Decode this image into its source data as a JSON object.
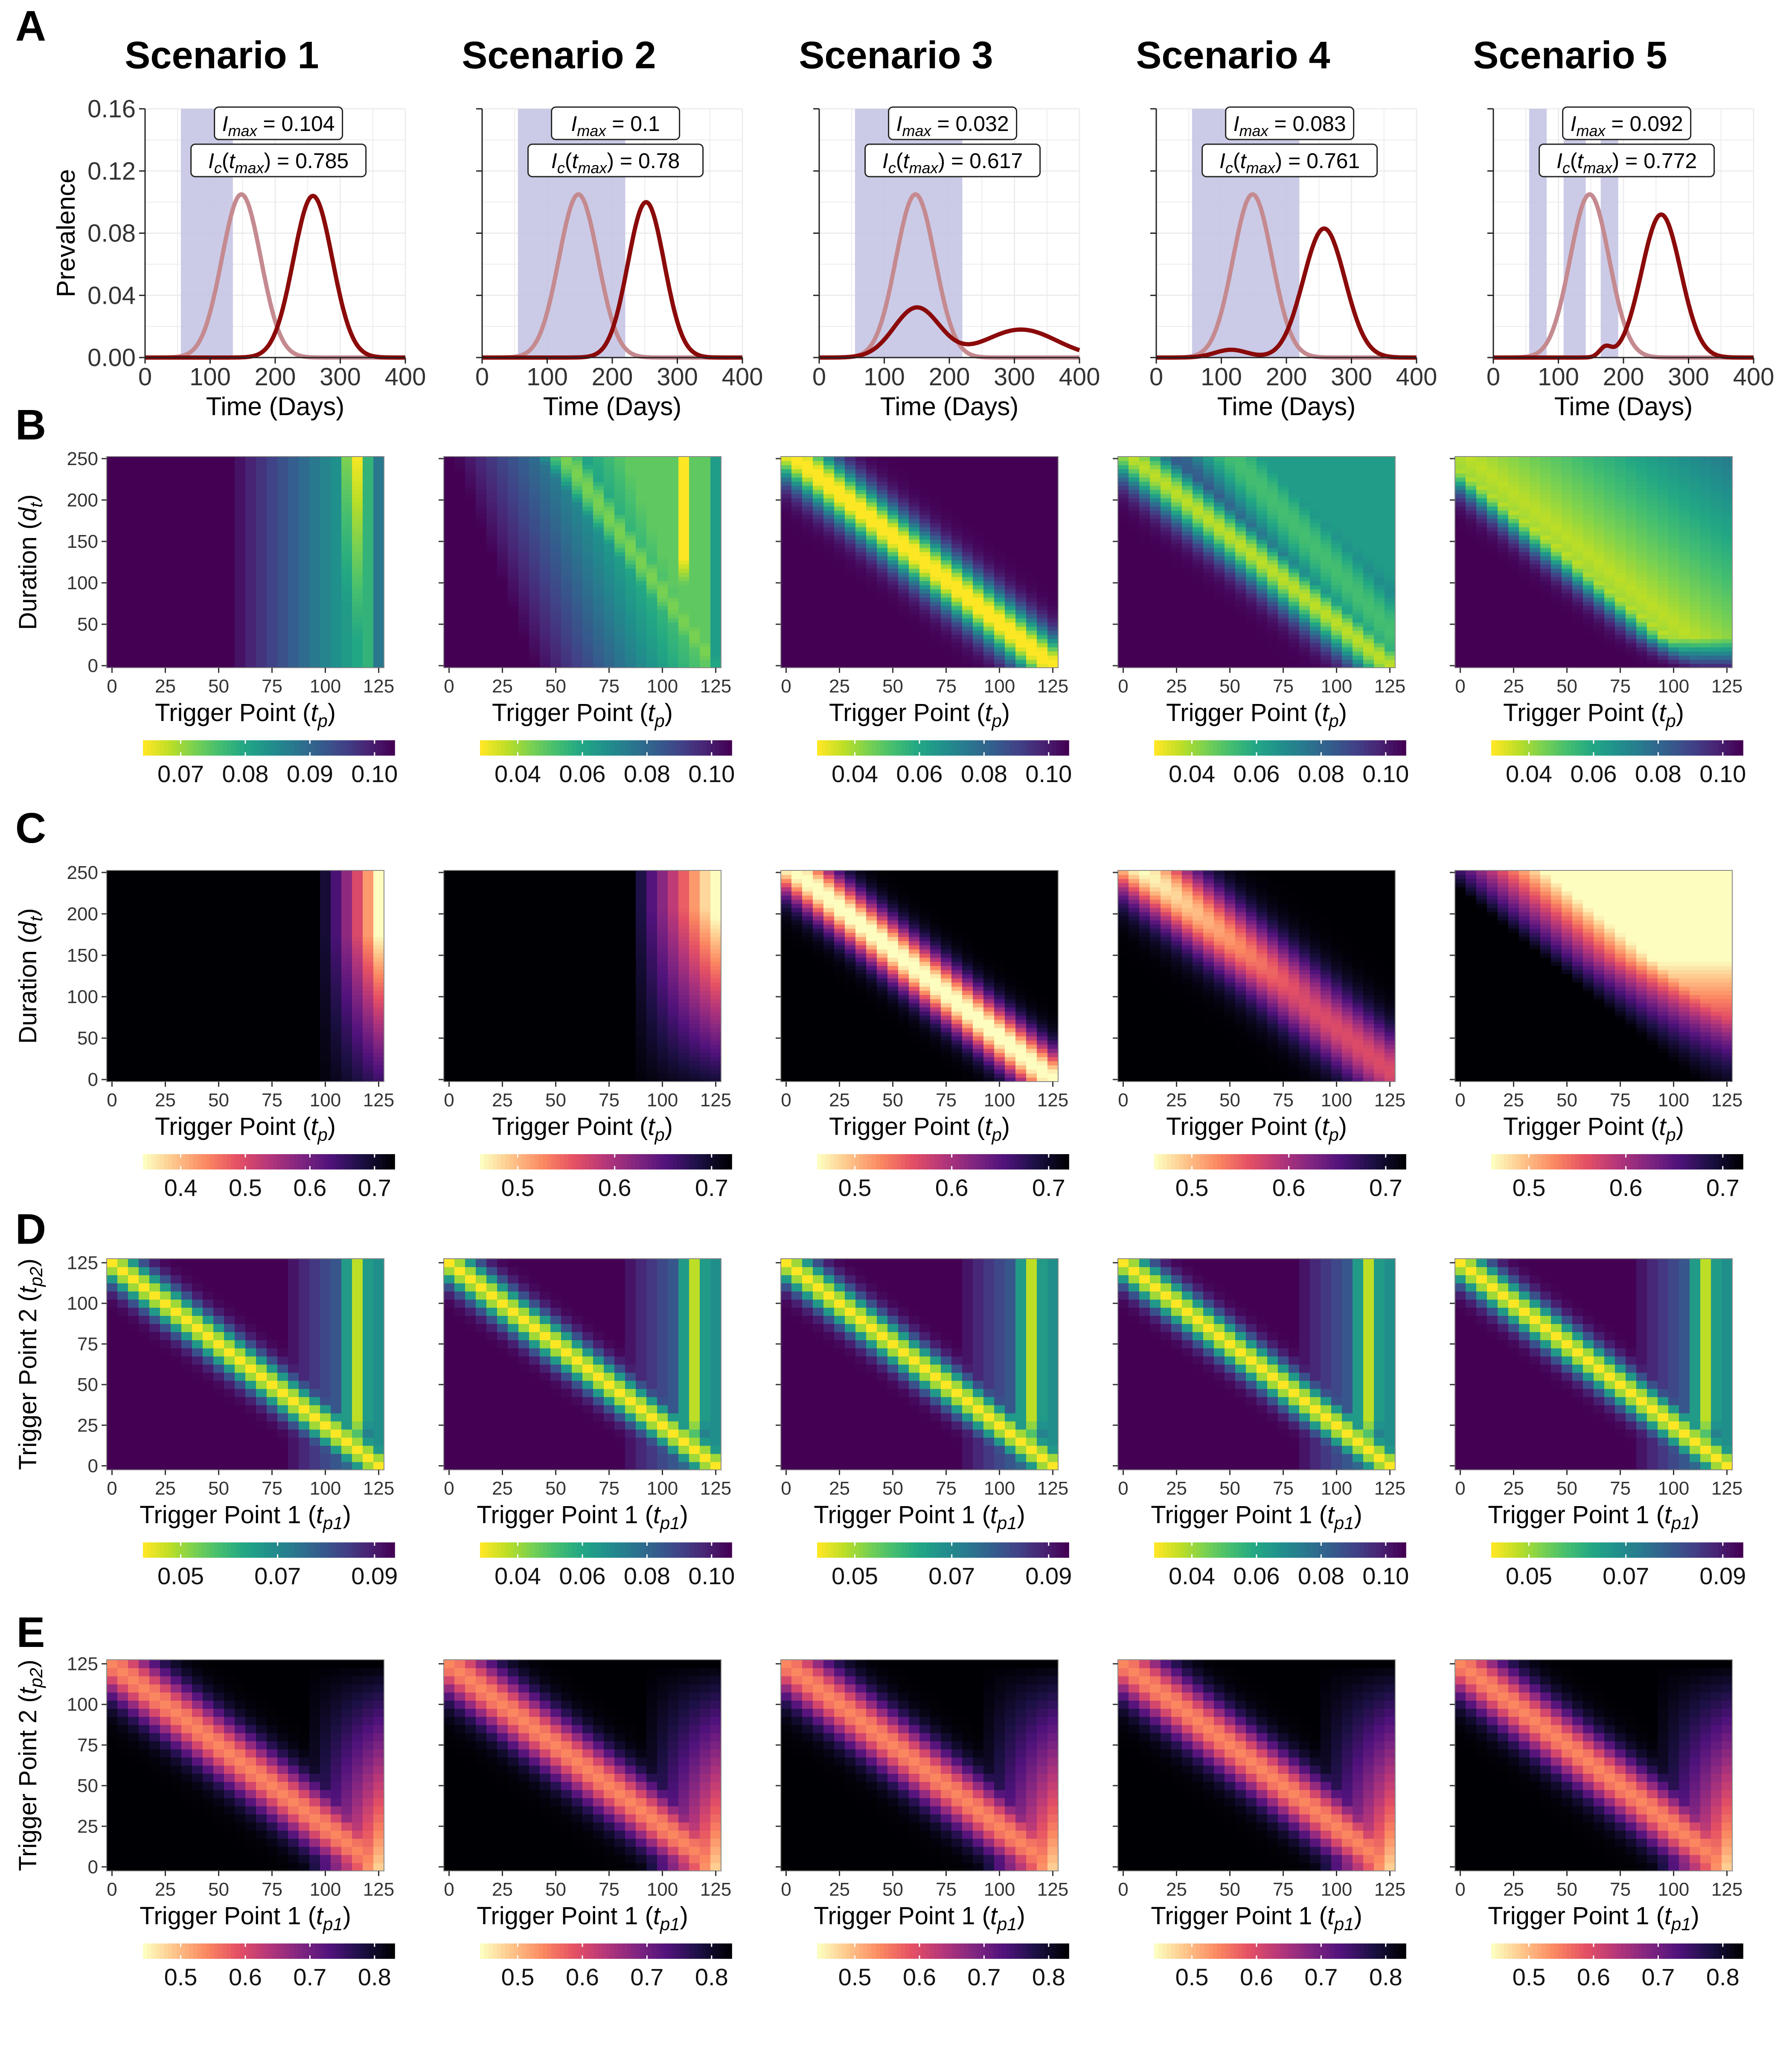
{
  "figure": {
    "panels": [
      {
        "letter": "A"
      },
      {
        "letter": "B"
      },
      {
        "letter": "C"
      },
      {
        "letter": "D"
      },
      {
        "letter": "E"
      }
    ],
    "scenarios": [
      {
        "title": "Scenario 1"
      },
      {
        "title": "Scenario 2"
      },
      {
        "title": "Scenario 3"
      },
      {
        "title": "Scenario 4"
      },
      {
        "title": "Scenario 5"
      }
    ]
  },
  "colors": {
    "baseline_curve": "#c48a90",
    "intervention_curve": "#8b0a0a",
    "intervention_band": "#c5c5e4",
    "grid": "#ececec"
  },
  "chart_data": [
    {
      "panel": "A",
      "type": "line",
      "xlabel": "Time (Days)",
      "ylabel": "Prevalence",
      "xlim": [
        0,
        400
      ],
      "ylim": [
        0,
        0.16
      ],
      "xticks": [
        "0",
        "100",
        "200",
        "300",
        "400"
      ],
      "yticks": [
        "0.00",
        "0.04",
        "0.08",
        "0.12",
        "0.16"
      ],
      "grid": true,
      "scenarios": [
        {
          "imax_value": "0.104",
          "ic_value": "0.785",
          "bands": [
            [
              55,
              135
            ]
          ],
          "series": [
            {
              "role": "baseline",
              "peaks": [
                {
                  "t": 148,
                  "h": 0.105,
                  "w": 30
                }
              ]
            },
            {
              "role": "intervention",
              "peaks": [
                {
                  "t": 258,
                  "h": 0.104,
                  "w": 30
                }
              ]
            }
          ]
        },
        {
          "imax_value": "0.1",
          "ic_value": "0.78",
          "bands": [
            [
              55,
              220
            ]
          ],
          "series": [
            {
              "role": "baseline",
              "peaks": [
                {
                  "t": 148,
                  "h": 0.105,
                  "w": 30
                }
              ]
            },
            {
              "role": "intervention",
              "peaks": [
                {
                  "t": 252,
                  "h": 0.1,
                  "w": 28
                }
              ]
            }
          ]
        },
        {
          "imax_value": "0.032",
          "ic_value": "0.617",
          "bands": [
            [
              55,
              220
            ]
          ],
          "series": [
            {
              "role": "baseline",
              "peaks": [
                {
                  "t": 148,
                  "h": 0.105,
                  "w": 30
                }
              ]
            },
            {
              "role": "intervention",
              "peaks": [
                {
                  "t": 150,
                  "h": 0.032,
                  "w": 35
                },
                {
                  "t": 310,
                  "h": 0.018,
                  "w": 55
                }
              ]
            }
          ]
        },
        {
          "imax_value": "0.083",
          "ic_value": "0.761",
          "bands": [
            [
              55,
              220
            ]
          ],
          "series": [
            {
              "role": "baseline",
              "peaks": [
                {
                  "t": 148,
                  "h": 0.105,
                  "w": 30
                }
              ]
            },
            {
              "role": "intervention",
              "peaks": [
                {
                  "t": 115,
                  "h": 0.005,
                  "w": 25
                },
                {
                  "t": 258,
                  "h": 0.083,
                  "w": 32
                }
              ]
            }
          ]
        },
        {
          "imax_value": "0.092",
          "ic_value": "0.772",
          "bands": [
            [
              55,
              82
            ],
            [
              108,
              142
            ],
            [
              165,
              192
            ]
          ],
          "series": [
            {
              "role": "baseline",
              "peaks": [
                {
                  "t": 148,
                  "h": 0.105,
                  "w": 30
                }
              ]
            },
            {
              "role": "intervention",
              "peaks": [
                {
                  "t": 172,
                  "h": 0.006,
                  "w": 9
                },
                {
                  "t": 258,
                  "h": 0.092,
                  "w": 30
                }
              ]
            }
          ]
        }
      ]
    },
    {
      "panel": "B",
      "type": "heatmap",
      "colormap": "viridis-reversed",
      "xlabel": "Trigger Point (t_p)",
      "ylabel": "Duration (d_t)",
      "xlim": [
        0,
        125
      ],
      "ylim": [
        0,
        250
      ],
      "xticks": [
        "0",
        "25",
        "50",
        "75",
        "100",
        "125"
      ],
      "yticks": [
        "0",
        "50",
        "100",
        "150",
        "200",
        "250"
      ],
      "scenarios": [
        {
          "pattern": "right-band",
          "colorbar": {
            "ticks": [
              "0.07",
              "0.08",
              "0.09",
              "0.10"
            ]
          }
        },
        {
          "pattern": "right-band-diag",
          "colorbar": {
            "ticks": [
              "0.04",
              "0.06",
              "0.08",
              "0.10"
            ]
          }
        },
        {
          "pattern": "diagonal",
          "colorbar": {
            "ticks": [
              "0.04",
              "0.06",
              "0.08",
              "0.10"
            ]
          }
        },
        {
          "pattern": "diagonal-band",
          "colorbar": {
            "ticks": [
              "0.04",
              "0.06",
              "0.08",
              "0.10"
            ]
          }
        },
        {
          "pattern": "upper-diagonal",
          "colorbar": {
            "ticks": [
              "0.04",
              "0.06",
              "0.08",
              "0.10"
            ]
          }
        }
      ]
    },
    {
      "panel": "C",
      "type": "heatmap",
      "colormap": "magma-reversed",
      "xlabel": "Trigger Point (t_p)",
      "ylabel": "Duration (d_t)",
      "xlim": [
        0,
        125
      ],
      "ylim": [
        0,
        250
      ],
      "xticks": [
        "0",
        "25",
        "50",
        "75",
        "100",
        "125"
      ],
      "yticks": [
        "0",
        "50",
        "100",
        "150",
        "200",
        "250"
      ],
      "scenarios": [
        {
          "pattern": "right-corner",
          "colorbar": {
            "ticks": [
              "0.4",
              "0.5",
              "0.6",
              "0.7"
            ]
          }
        },
        {
          "pattern": "right-corner-wide",
          "colorbar": {
            "ticks": [
              "0.5",
              "0.6",
              "0.7"
            ]
          }
        },
        {
          "pattern": "diagonal",
          "colorbar": {
            "ticks": [
              "0.5",
              "0.6",
              "0.7"
            ]
          }
        },
        {
          "pattern": "diagonal-upper",
          "colorbar": {
            "ticks": [
              "0.5",
              "0.6",
              "0.7"
            ]
          }
        },
        {
          "pattern": "upper-fill",
          "colorbar": {
            "ticks": [
              "0.5",
              "0.6",
              "0.7"
            ]
          }
        }
      ]
    },
    {
      "panel": "D",
      "type": "heatmap",
      "colormap": "viridis-reversed",
      "xlabel": "Trigger Point 1 (t_p1)",
      "ylabel": "Trigger Point 2 (t_p2)",
      "xlim": [
        0,
        125
      ],
      "ylim": [
        0,
        125
      ],
      "xticks": [
        "0",
        "25",
        "50",
        "75",
        "100",
        "125"
      ],
      "yticks": [
        "0",
        "25",
        "50",
        "75",
        "100",
        "125"
      ],
      "scenarios": [
        {
          "pattern": "vee",
          "colorbar": {
            "ticks": [
              "0.05",
              "0.07",
              "0.09"
            ]
          }
        },
        {
          "pattern": "vee",
          "colorbar": {
            "ticks": [
              "0.04",
              "0.06",
              "0.08",
              "0.10"
            ]
          }
        },
        {
          "pattern": "vee",
          "colorbar": {
            "ticks": [
              "0.05",
              "0.07",
              "0.09"
            ]
          }
        },
        {
          "pattern": "vee",
          "colorbar": {
            "ticks": [
              "0.04",
              "0.06",
              "0.08",
              "0.10"
            ]
          }
        },
        {
          "pattern": "vee",
          "colorbar": {
            "ticks": [
              "0.05",
              "0.07",
              "0.09"
            ]
          }
        }
      ]
    },
    {
      "panel": "E",
      "type": "heatmap",
      "colormap": "magma-reversed",
      "xlabel": "Trigger Point 1 (t_p1)",
      "ylabel": "Trigger Point 2 (t_p2)",
      "xlim": [
        0,
        125
      ],
      "ylim": [
        0,
        125
      ],
      "xticks": [
        "0",
        "25",
        "50",
        "75",
        "100",
        "125"
      ],
      "yticks": [
        "0",
        "25",
        "50",
        "75",
        "100",
        "125"
      ],
      "scenarios": [
        {
          "pattern": "vee-soft",
          "colorbar": {
            "ticks": [
              "0.5",
              "0.6",
              "0.7",
              "0.8"
            ]
          }
        },
        {
          "pattern": "vee-soft",
          "colorbar": {
            "ticks": [
              "0.5",
              "0.6",
              "0.7",
              "0.8"
            ]
          }
        },
        {
          "pattern": "vee-soft",
          "colorbar": {
            "ticks": [
              "0.5",
              "0.6",
              "0.7",
              "0.8"
            ]
          }
        },
        {
          "pattern": "vee-soft",
          "colorbar": {
            "ticks": [
              "0.5",
              "0.6",
              "0.7",
              "0.8"
            ]
          }
        },
        {
          "pattern": "vee-soft",
          "colorbar": {
            "ticks": [
              "0.5",
              "0.6",
              "0.7",
              "0.8"
            ]
          }
        }
      ]
    }
  ]
}
